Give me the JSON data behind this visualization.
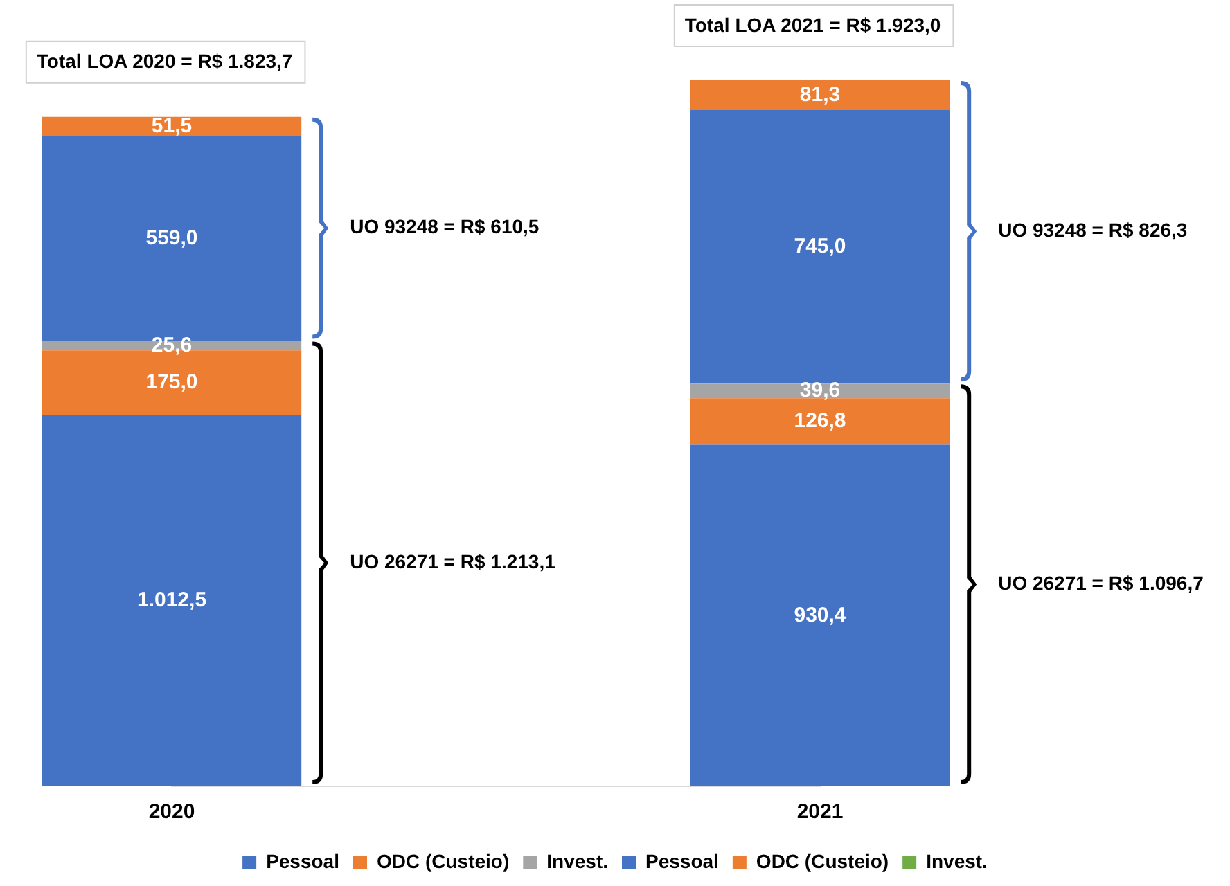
{
  "chart_data": {
    "type": "bar",
    "stacked": true,
    "categories": [
      "2020",
      "2021"
    ],
    "series": [
      {
        "name": "Pessoal",
        "color": "#4472c4",
        "values": [
          1012.5,
          930.4
        ],
        "value_labels": [
          "1.012,5",
          "930,4"
        ]
      },
      {
        "name": "ODC (Custeio)",
        "color": "#ed7d31",
        "values": [
          175.0,
          126.8
        ],
        "value_labels": [
          "175,0",
          "126,8"
        ]
      },
      {
        "name": "Invest.",
        "color": "#a5a5a5",
        "values": [
          25.6,
          39.6
        ],
        "value_labels": [
          "25,6",
          "39,6"
        ]
      },
      {
        "name": "Pessoal",
        "color": "#4472c4",
        "values": [
          559.0,
          745.0
        ],
        "value_labels": [
          "559,0",
          "745,0"
        ]
      },
      {
        "name": "ODC (Custeio)",
        "color": "#ed7d31",
        "values": [
          51.5,
          81.3
        ],
        "value_labels": [
          "51,5",
          "81,3"
        ]
      },
      {
        "name": "Invest.",
        "color": "#70ad47",
        "values": [
          null,
          null
        ],
        "value_labels": [
          null,
          null
        ]
      }
    ],
    "tick_labels": "x",
    "grid": false,
    "legend": "bottom",
    "annotations": [
      {
        "text": "Total LOA 2020 = R$ 1.823,7",
        "x": "2020",
        "y": 1823.7
      },
      {
        "text": "Total LOA 2021 = R$ 1.923,0",
        "x": "2021",
        "y": 1923.0
      },
      "UO 26271 = R$ 1.213,1",
      "UO 93248 = R$ 610,5",
      "UO 26271 = R$ 1.096,7",
      "UO 93248 = R$ 826,3"
    ]
  }
}
